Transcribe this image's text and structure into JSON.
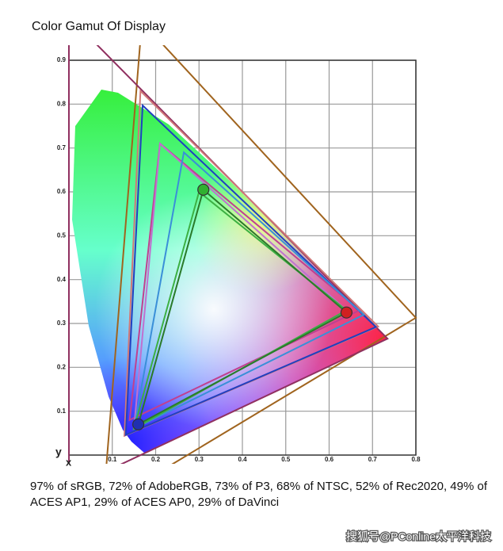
{
  "chart_data": {
    "type": "gamut",
    "title": "Color Gamut Of Display",
    "xlabel": "x",
    "ylabel": "y",
    "xlim": [
      0,
      0.8
    ],
    "ylim": [
      0,
      0.9
    ],
    "xticks": [
      0.1,
      0.2,
      0.3,
      0.4,
      0.5,
      0.6,
      0.7,
      0.8
    ],
    "yticks": [
      0.1,
      0.2,
      0.3,
      0.4,
      0.5,
      0.6,
      0.7,
      0.8,
      0.9
    ],
    "grid": true,
    "series": [
      {
        "color": "#a0641e",
        "x": [
          0.8,
          0.1682,
          0.079
        ],
        "values": [
          0.313,
          0.9877,
          -0.1155
        ]
      },
      {
        "color": "#903060",
        "x": [
          0.7347,
          0.0,
          0.0001
        ],
        "values": [
          0.2653,
          1.0,
          -0.077
        ]
      },
      {
        "color": "#d07878",
        "x": [
          0.713,
          0.165,
          0.128
        ],
        "values": [
          0.293,
          0.83,
          0.044
        ]
      },
      {
        "color": "#2040c0",
        "x": [
          0.708,
          0.17,
          0.131
        ],
        "values": [
          0.292,
          0.797,
          0.046
        ]
      },
      {
        "color": "#c04090",
        "x": [
          0.67,
          0.21,
          0.14
        ],
        "values": [
          0.33,
          0.71,
          0.08
        ]
      },
      {
        "color": "#c070d0",
        "x": [
          0.64,
          0.21,
          0.15
        ],
        "values": [
          0.33,
          0.71,
          0.06
        ]
      },
      {
        "color": "#3a8fd8",
        "x": [
          0.68,
          0.265,
          0.15
        ],
        "values": [
          0.32,
          0.69,
          0.06
        ]
      },
      {
        "color": "#3cb043",
        "x": [
          0.64,
          0.3,
          0.15
        ],
        "values": [
          0.33,
          0.6,
          0.06
        ]
      },
      {
        "color": "#2a7a2a",
        "x": [
          0.64,
          0.31,
          0.16
        ],
        "values": [
          0.325,
          0.605,
          0.07
        ],
        "markers": [
          "#d02020",
          "#30b030",
          "#2030b0"
        ]
      }
    ],
    "caption": "97% of sRGB, 72% of AdobeRGB, 73% of P3, 68% of NTSC, 52% of Rec2020, 49% of ACES AP1, 29% of ACES AP0, 29% of DaVinci",
    "watermark": "搜狐号@PConline太平洋科技"
  }
}
